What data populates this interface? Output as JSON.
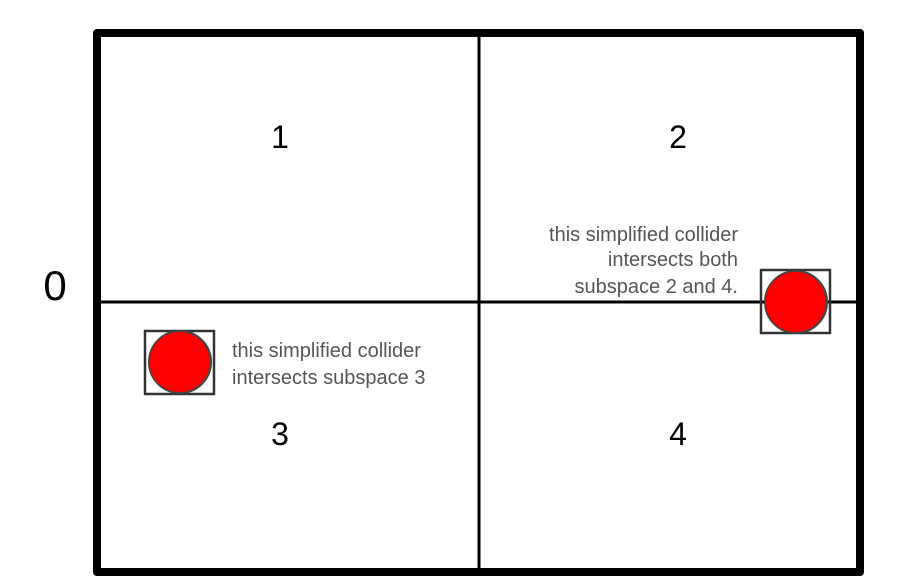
{
  "root_label": "0",
  "subspaces": [
    "1",
    "2",
    "3",
    "4"
  ],
  "colors": {
    "border": "#000000",
    "collider": "#ff0000",
    "collider_outline": "#444444",
    "box_outline": "#333333",
    "note_text": "#555555"
  },
  "annotations": {
    "right_collider": [
      "this simplified collider",
      "intersects both",
      "subspace 2 and 4."
    ],
    "left_collider": [
      "this simplified collider",
      "intersects subspace 3"
    ]
  }
}
